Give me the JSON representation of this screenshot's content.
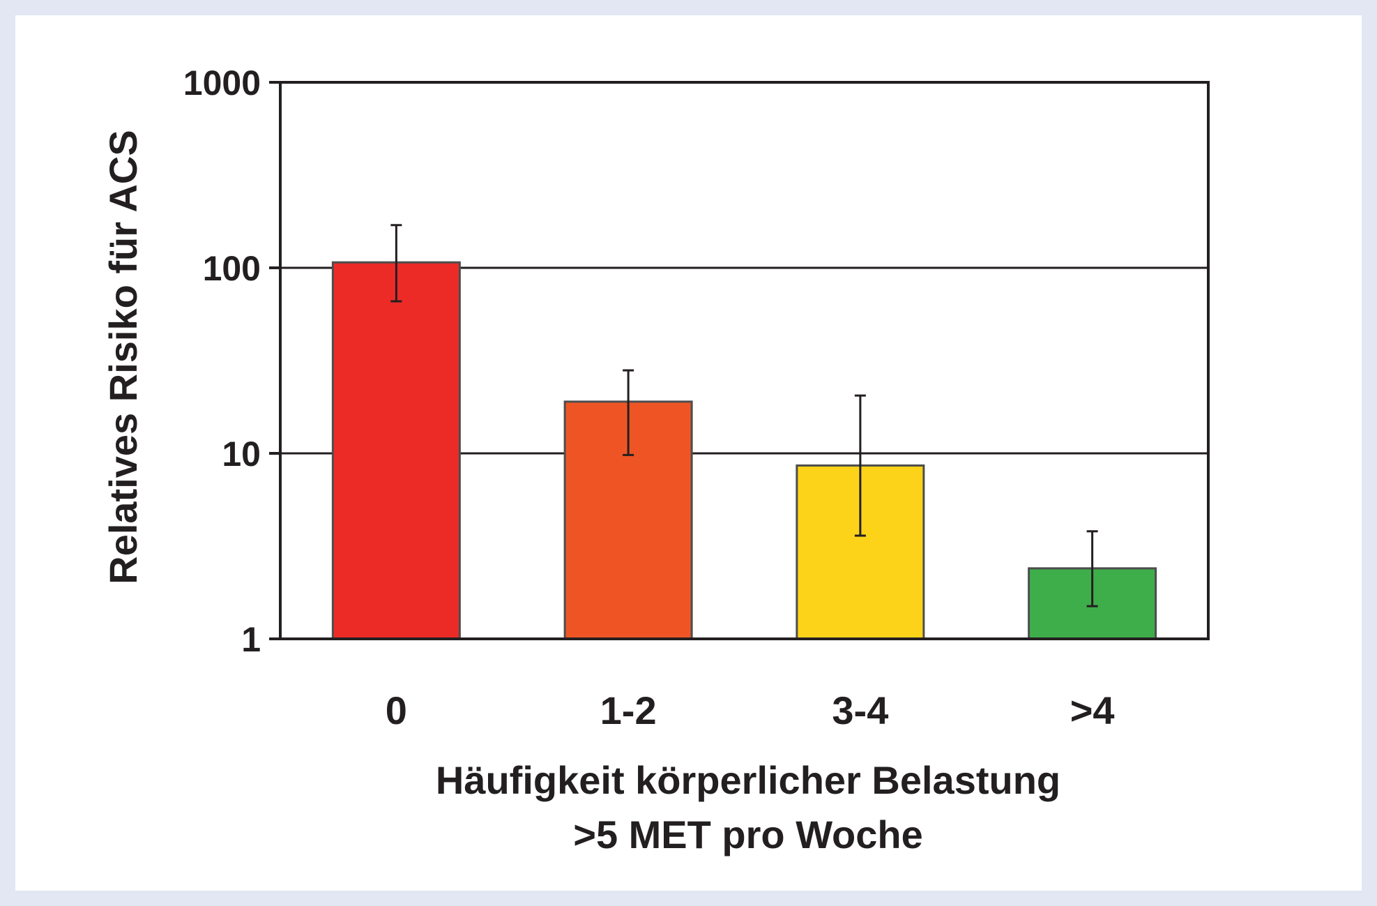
{
  "chart_data": {
    "type": "bar",
    "scale": "log",
    "categories": [
      "0",
      "1-2",
      "3-4",
      ">4"
    ],
    "values": [
      107,
      19,
      8.6,
      2.4
    ],
    "error_low": [
      66,
      9.8,
      3.6,
      1.5
    ],
    "error_high": [
      170,
      28,
      20.5,
      3.8
    ],
    "colors": [
      "#ec2b27",
      "#ef5524",
      "#fdd319",
      "#3eae4a"
    ],
    "ylim": [
      1,
      1000
    ],
    "yticks": [
      1,
      10,
      100,
      1000
    ],
    "ytick_labels": [
      "1",
      "10",
      "100",
      "1000"
    ],
    "ylabel": "Relatives Risiko für ACS",
    "xlabel_line1": "Häufigkeit körperlicher Belastung",
    "xlabel_line2": ">5 MET pro Woche",
    "grid": true
  }
}
